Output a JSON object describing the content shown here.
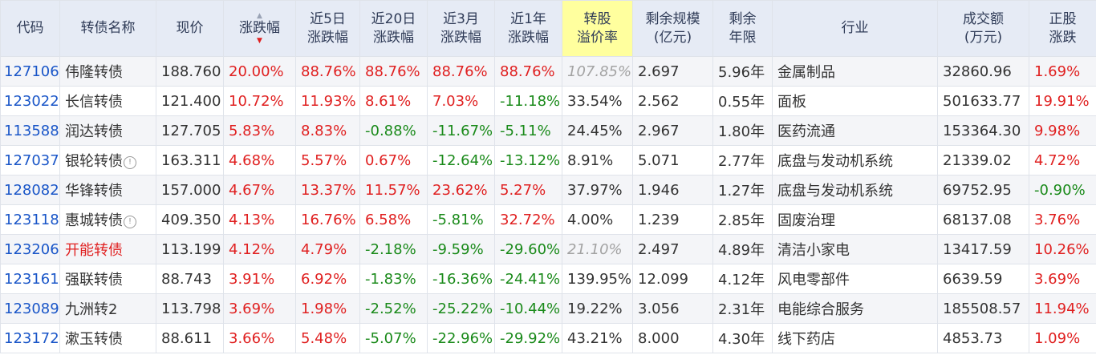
{
  "headers": [
    {
      "line1": "代码",
      "line2": ""
    },
    {
      "line1": "转债名称",
      "line2": ""
    },
    {
      "line1": "现价",
      "line2": ""
    },
    {
      "line1": "涨跌幅",
      "line2": ""
    },
    {
      "line1": "近5日",
      "line2": "涨跌幅"
    },
    {
      "line1": "近20日",
      "line2": "涨跌幅"
    },
    {
      "line1": "近3月",
      "line2": "涨跌幅"
    },
    {
      "line1": "近1年",
      "line2": "涨跌幅"
    },
    {
      "line1": "转股",
      "line2": "溢价率"
    },
    {
      "line1": "剩余规模",
      "line2": "(亿元)"
    },
    {
      "line1": "剩余",
      "line2": "年限"
    },
    {
      "line1": "行业",
      "line2": ""
    },
    {
      "line1": "成交额",
      "line2": "(万元)"
    },
    {
      "line1": "正股",
      "line2": "涨跌"
    }
  ],
  "sort": {
    "up": "▲",
    "down": "▼"
  },
  "info_icon": "!",
  "rows": [
    {
      "code": "127106",
      "name": "伟隆转债",
      "price": "188.760",
      "chg": "20.00%",
      "chg5": "88.76%",
      "chg20": "88.76%",
      "chg3m": "88.76%",
      "chg1y": "88.76%",
      "premium": "107.85%",
      "scale": "2.697",
      "years": "5.96年",
      "industry": "金属制品",
      "turnover": "32860.96",
      "stock_chg": "1.69%"
    },
    {
      "code": "123022",
      "name": "长信转债",
      "price": "121.400",
      "chg": "10.72%",
      "chg5": "11.93%",
      "chg20": "8.61%",
      "chg3m": "7.03%",
      "chg1y": "-11.18%",
      "premium": "33.54%",
      "scale": "2.562",
      "years": "0.55年",
      "industry": "面板",
      "turnover": "501633.77",
      "stock_chg": "19.91%"
    },
    {
      "code": "113588",
      "name": "润达转债",
      "price": "127.705",
      "chg": "5.83%",
      "chg5": "8.83%",
      "chg20": "-0.88%",
      "chg3m": "-11.67%",
      "chg1y": "-5.11%",
      "premium": "24.45%",
      "scale": "2.967",
      "years": "1.80年",
      "industry": "医药流通",
      "turnover": "153364.30",
      "stock_chg": "9.98%"
    },
    {
      "code": "127037",
      "name": "银轮转债",
      "price": "163.311",
      "chg": "4.68%",
      "chg5": "5.57%",
      "chg20": "0.67%",
      "chg3m": "-12.64%",
      "chg1y": "-13.12%",
      "premium": "8.91%",
      "scale": "5.071",
      "years": "2.77年",
      "industry": "底盘与发动机系统",
      "turnover": "21339.02",
      "stock_chg": "4.72%"
    },
    {
      "code": "128082",
      "name": "华锋转债",
      "price": "157.000",
      "chg": "4.67%",
      "chg5": "13.37%",
      "chg20": "11.57%",
      "chg3m": "23.62%",
      "chg1y": "5.27%",
      "premium": "37.97%",
      "scale": "1.946",
      "years": "1.27年",
      "industry": "底盘与发动机系统",
      "turnover": "69752.95",
      "stock_chg": "-0.90%"
    },
    {
      "code": "123118",
      "name": "惠城转债",
      "price": "409.350",
      "chg": "4.13%",
      "chg5": "16.76%",
      "chg20": "6.58%",
      "chg3m": "-5.81%",
      "chg1y": "32.72%",
      "premium": "4.00%",
      "scale": "1.239",
      "years": "2.85年",
      "industry": "固废治理",
      "turnover": "68137.08",
      "stock_chg": "3.76%"
    },
    {
      "code": "123206",
      "name": "开能转债",
      "price": "113.199",
      "chg": "4.12%",
      "chg5": "4.79%",
      "chg20": "-2.18%",
      "chg3m": "-9.59%",
      "chg1y": "-29.60%",
      "premium": "21.10%",
      "scale": "2.497",
      "years": "4.89年",
      "industry": "清洁小家电",
      "turnover": "13417.59",
      "stock_chg": "10.26%"
    },
    {
      "code": "123161",
      "name": "强联转债",
      "price": "88.743",
      "chg": "3.91%",
      "chg5": "6.92%",
      "chg20": "-1.83%",
      "chg3m": "-16.36%",
      "chg1y": "-24.41%",
      "premium": "139.95%",
      "scale": "12.099",
      "years": "4.12年",
      "industry": "风电零部件",
      "turnover": "6639.59",
      "stock_chg": "3.69%"
    },
    {
      "code": "123089",
      "name": "九洲转2",
      "price": "113.798",
      "chg": "3.69%",
      "chg5": "1.98%",
      "chg20": "-2.52%",
      "chg3m": "-25.22%",
      "chg1y": "-10.44%",
      "premium": "19.22%",
      "scale": "3.056",
      "years": "2.31年",
      "industry": "电能综合服务",
      "turnover": "185508.57",
      "stock_chg": "11.94%"
    },
    {
      "code": "123172",
      "name": "漱玉转债",
      "price": "88.611",
      "chg": "3.66%",
      "chg5": "5.48%",
      "chg20": "-5.07%",
      "chg3m": "-22.96%",
      "chg1y": "-29.92%",
      "premium": "43.21%",
      "scale": "8.000",
      "years": "4.30年",
      "industry": "线下药店",
      "turnover": "4853.73",
      "stock_chg": "1.09%"
    }
  ]
}
